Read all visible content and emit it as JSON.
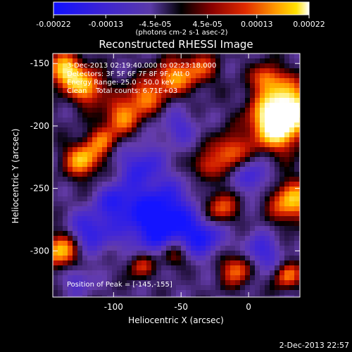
{
  "colorbar": {
    "ticks": [
      "-0.00022",
      "-0.00013",
      "-4.5e-05",
      "4.5e-05",
      "0.00013",
      "0.00022"
    ],
    "tick_values": [
      -0.00022,
      -0.00013,
      -4.5e-05,
      4.5e-05,
      0.00013,
      0.00022
    ],
    "unit": "(photons cm-2 s-1 asec-2)",
    "colors": [
      "#0000ff",
      "#3a1fc8",
      "#7b3fa8",
      "#000000",
      "#7a0000",
      "#d81a00",
      "#ff8c00",
      "#ffd400",
      "#ffffff"
    ]
  },
  "plot": {
    "title": "Reconstructed RHESSI Image",
    "info_lines": [
      "3-Dec-2013 02:19:40.000 to 02:23:18.000",
      "Detectors: 3F 5F 6F 7F 8F 9F, Att 0",
      "Energy Range: 25.0 - 50.0 keV",
      "Clean    Total counts: 6.71E+03"
    ],
    "peak_text": "Position of Peak = [-145,-155]",
    "xlabel": "Heliocentric X (arcsec)",
    "ylabel": "Heliocentric Y (arcsec)",
    "xticks": [
      "-100",
      "-50",
      "0"
    ],
    "xtick_values": [
      -100,
      -50,
      0
    ],
    "yticks": [
      "-150",
      "-200",
      "-250",
      "-300"
    ],
    "ytick_values": [
      -150,
      -200,
      -250,
      -300
    ],
    "xlim": [
      -145,
      38
    ],
    "ylim": [
      -337,
      -142
    ],
    "footer_date": "2-Dec-2013 22:57"
  }
}
